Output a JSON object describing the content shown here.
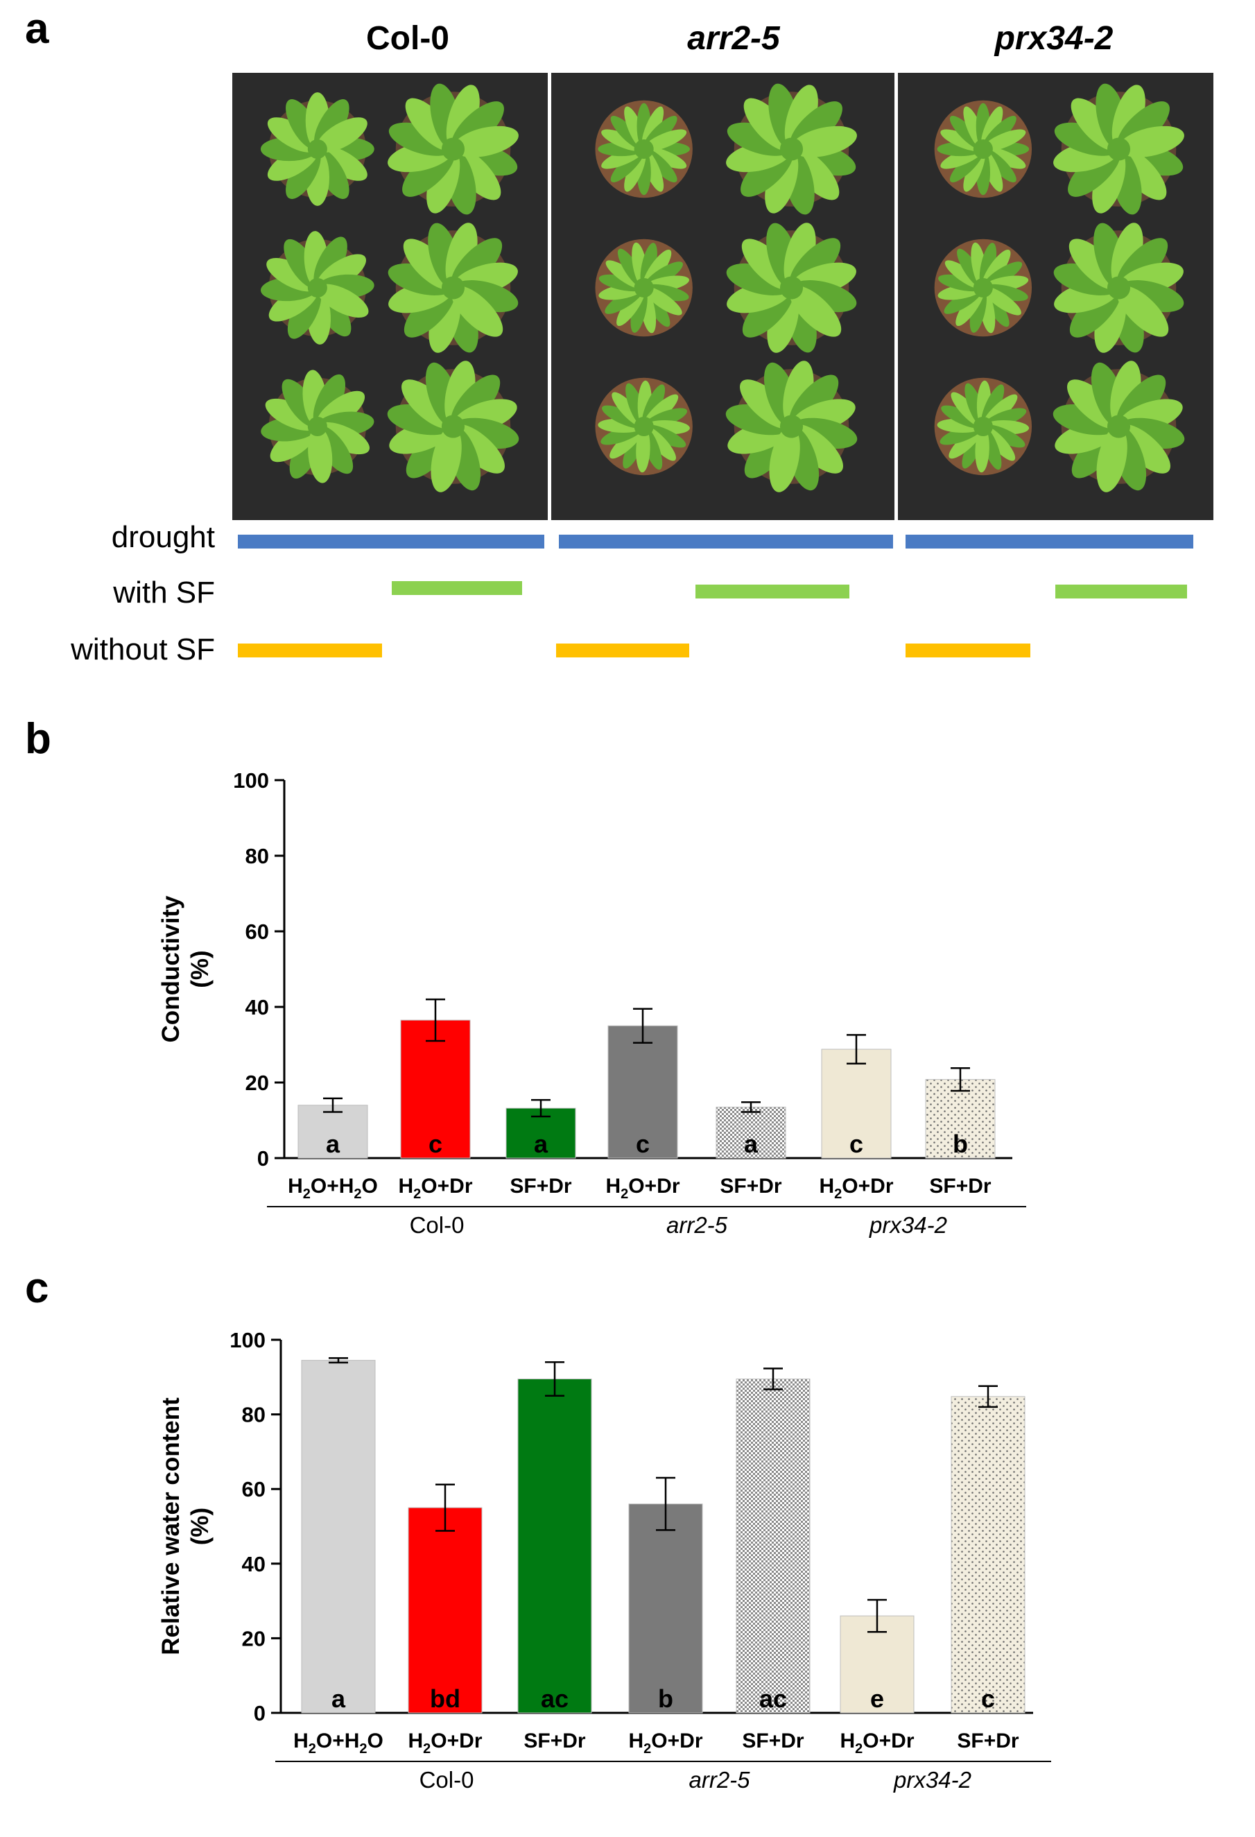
{
  "panel_a": {
    "letter": "a",
    "genotypes": [
      {
        "name": "Col-0",
        "italic": false
      },
      {
        "name": "arr2-5",
        "italic": true
      },
      {
        "name": "prx34-2",
        "italic": true
      }
    ],
    "conditions": {
      "drought": {
        "label": "drought",
        "color": "#4a7bc4"
      },
      "with_sf": {
        "label": "with SF",
        "color": "#8cd150"
      },
      "without_sf": {
        "label": "without SF",
        "color": "#ffc000"
      }
    },
    "photo_colors": {
      "background": "#2b2b2b",
      "leaf": "#8fd34a",
      "leaf_dark": "#5fa832",
      "pot": "#8a5a3a"
    }
  },
  "panel_b": {
    "letter": "b",
    "chart_data": {
      "type": "bar",
      "ylabel": "Conductivity",
      "ylabel_unit": "(%)",
      "ylim": [
        0,
        100
      ],
      "yticks": [
        0,
        20,
        40,
        60,
        80,
        100
      ],
      "categories": [
        "H2O+H2O",
        "H2O+Dr",
        "SF+Dr",
        "H2O+Dr",
        "SF+Dr",
        "H2O+Dr",
        "SF+Dr"
      ],
      "values": [
        14,
        36.5,
        13.2,
        35,
        13.5,
        28.8,
        20.8
      ],
      "errors": [
        1.8,
        5.5,
        2.2,
        4.5,
        1.3,
        3.8,
        3
      ],
      "letters": [
        "a",
        "c",
        "a",
        "c",
        "a",
        "c",
        "b"
      ],
      "fills": [
        "#d4d4d4",
        "#ff0000",
        "#007a12",
        "#7a7a7a",
        "checker",
        "#efe8d4",
        "dots"
      ],
      "groups": [
        {
          "name": "Col-0",
          "italic": false,
          "span": [
            0,
            2
          ]
        },
        {
          "name": "arr2-5",
          "italic": true,
          "span": [
            3,
            4
          ]
        },
        {
          "name": "prx34-2",
          "italic": true,
          "span": [
            5,
            6
          ]
        }
      ]
    }
  },
  "panel_c": {
    "letter": "c",
    "chart_data": {
      "type": "bar",
      "ylabel": "Relative water content",
      "ylabel_unit": "(%)",
      "ylim": [
        0,
        100
      ],
      "yticks": [
        0,
        20,
        40,
        60,
        80,
        100
      ],
      "categories": [
        "H2O+H2O",
        "H2O+Dr",
        "SF+Dr",
        "H2O+Dr",
        "SF+Dr",
        "H2O+Dr",
        "SF+Dr"
      ],
      "values": [
        94.5,
        55,
        89.5,
        56,
        89.5,
        26,
        84.8
      ],
      "errors": [
        0.6,
        6.2,
        4.5,
        7,
        2.8,
        4.3,
        2.8
      ],
      "letters": [
        "a",
        "bd",
        "ac",
        "b",
        "ac",
        "e",
        "c"
      ],
      "fills": [
        "#d4d4d4",
        "#ff0000",
        "#007a12",
        "#7a7a7a",
        "checker",
        "#efe8d4",
        "dots"
      ],
      "groups": [
        {
          "name": "Col-0",
          "italic": false,
          "span": [
            0,
            2
          ]
        },
        {
          "name": "arr2-5",
          "italic": true,
          "span": [
            3,
            4
          ]
        },
        {
          "name": "prx34-2",
          "italic": true,
          "span": [
            5,
            6
          ]
        }
      ]
    }
  }
}
